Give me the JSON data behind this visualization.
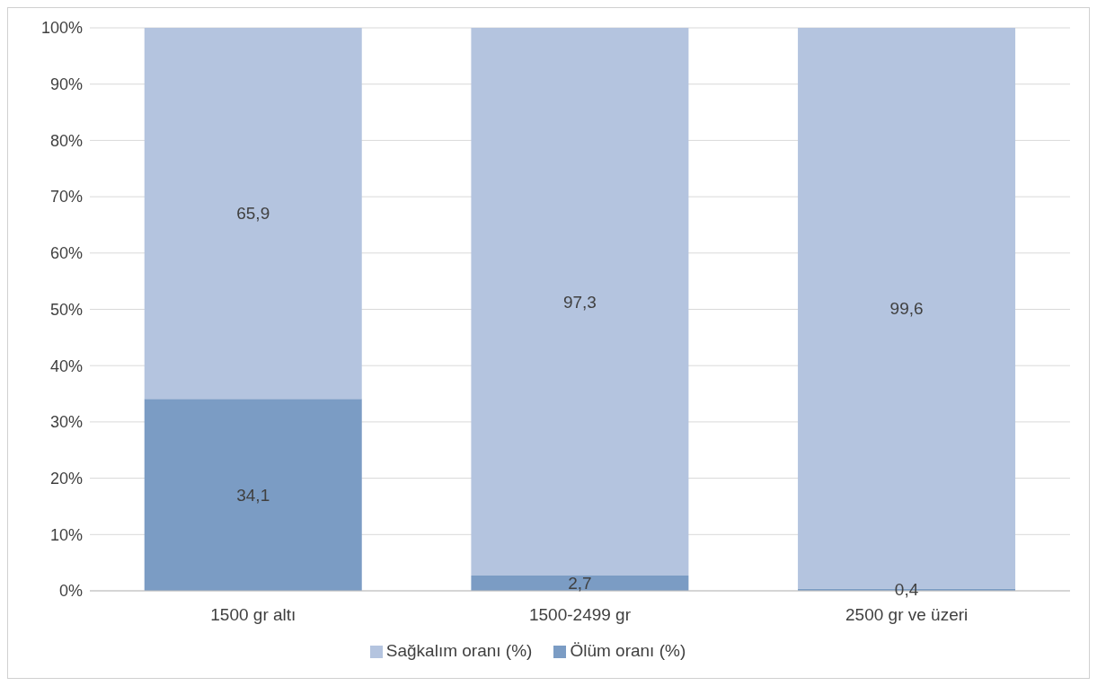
{
  "chart_data": {
    "type": "bar",
    "stacked": true,
    "categories": [
      "1500 gr altı",
      "1500-2499 gr",
      "2500 gr ve üzeri"
    ],
    "series": [
      {
        "name": "Ölüm oranı (%)",
        "color": "#7b9cc4",
        "values": [
          34.1,
          2.7,
          0.4
        ],
        "value_labels": [
          "34,1",
          "2,7",
          "0,4"
        ]
      },
      {
        "name": "Sağkalım oranı (%)",
        "color": "#b4c4df",
        "values": [
          65.9,
          97.3,
          99.6
        ],
        "value_labels": [
          "65,9",
          "97,3",
          "99,6"
        ]
      }
    ],
    "ylim": [
      0,
      100
    ],
    "yticks": [
      {
        "value": 0,
        "label": "0%"
      },
      {
        "value": 10,
        "label": "10%"
      },
      {
        "value": 20,
        "label": "20%"
      },
      {
        "value": 30,
        "label": "30%"
      },
      {
        "value": 40,
        "label": "40%"
      },
      {
        "value": 50,
        "label": "50%"
      },
      {
        "value": 60,
        "label": "60%"
      },
      {
        "value": 70,
        "label": "70%"
      },
      {
        "value": 80,
        "label": "80%"
      },
      {
        "value": 90,
        "label": "90%"
      },
      {
        "value": 100,
        "label": "100%"
      }
    ],
    "grid": "y",
    "legend": "bottom"
  }
}
